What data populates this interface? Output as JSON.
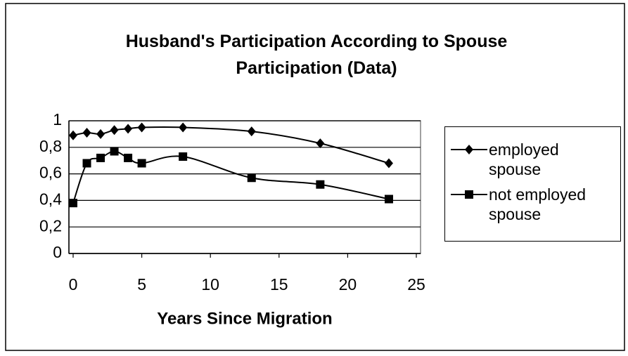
{
  "chart_data": {
    "type": "line",
    "title": "Husband's Participation According to Spouse Participation (Data)",
    "xlabel": "Years Since Migration",
    "x": [
      0,
      1,
      2,
      3,
      4,
      5,
      8,
      13,
      18,
      23
    ],
    "series": [
      {
        "name": "employed spouse",
        "color": "#000000",
        "marker": "diamond",
        "values": [
          0.89,
          0.91,
          0.9,
          0.93,
          0.94,
          0.95,
          0.95,
          0.92,
          0.83,
          0.68
        ]
      },
      {
        "name": "not employed spouse",
        "color": "#000000",
        "marker": "square",
        "values": [
          0.38,
          0.68,
          0.72,
          0.77,
          0.72,
          0.68,
          0.73,
          0.57,
          0.52,
          0.41
        ]
      }
    ],
    "xlim": [
      0,
      25
    ],
    "xticks": [
      0,
      5,
      10,
      15,
      20,
      25
    ],
    "ylim": [
      0,
      1
    ],
    "yticks": [
      0,
      {
        "value": 0.2,
        "label": "0,2"
      },
      {
        "value": 0.4,
        "label": "0,4"
      },
      {
        "value": 0.6,
        "label": "0,6"
      },
      {
        "value": 0.8,
        "label": "0,8"
      },
      1
    ],
    "grid": true,
    "legend": "right"
  }
}
